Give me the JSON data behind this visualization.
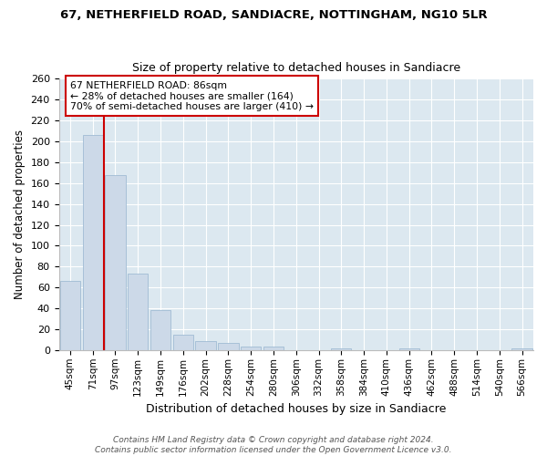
{
  "title": "67, NETHERFIELD ROAD, SANDIACRE, NOTTINGHAM, NG10 5LR",
  "subtitle": "Size of property relative to detached houses in Sandiacre",
  "xlabel": "Distribution of detached houses by size in Sandiacre",
  "ylabel": "Number of detached properties",
  "bar_color": "#ccd9e8",
  "bar_edge_color": "#a0bcd4",
  "bg_color": "#dce8f0",
  "fig_bg_color": "#ffffff",
  "grid_color": "#ffffff",
  "categories": [
    "45sqm",
    "71sqm",
    "97sqm",
    "123sqm",
    "149sqm",
    "176sqm",
    "202sqm",
    "228sqm",
    "254sqm",
    "280sqm",
    "306sqm",
    "332sqm",
    "358sqm",
    "384sqm",
    "410sqm",
    "436sqm",
    "462sqm",
    "488sqm",
    "514sqm",
    "540sqm",
    "566sqm"
  ],
  "values": [
    66,
    206,
    168,
    73,
    38,
    15,
    9,
    7,
    3,
    3,
    0,
    0,
    2,
    0,
    0,
    2,
    0,
    0,
    0,
    0,
    2
  ],
  "red_line_x": 1.5,
  "annotation_text": "67 NETHERFIELD ROAD: 86sqm\n← 28% of detached houses are smaller (164)\n70% of semi-detached houses are larger (410) →",
  "annotation_box_color": "#ffffff",
  "annotation_box_edge": "#cc0000",
  "red_line_color": "#cc0000",
  "ylim": [
    0,
    260
  ],
  "yticks": [
    0,
    20,
    40,
    60,
    80,
    100,
    120,
    140,
    160,
    180,
    200,
    220,
    240,
    260
  ],
  "footnote": "Contains HM Land Registry data © Crown copyright and database right 2024.\nContains public sector information licensed under the Open Government Licence v3.0."
}
